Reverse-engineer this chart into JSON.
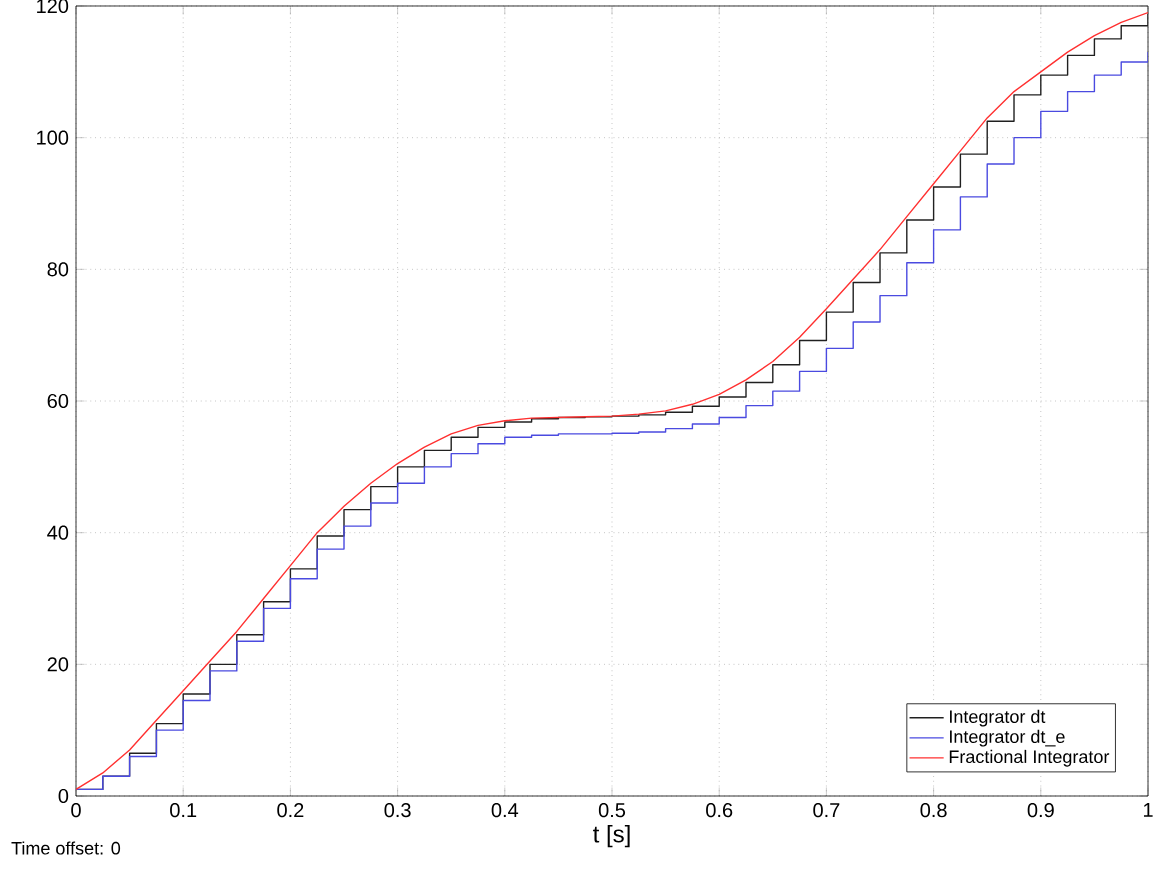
{
  "chart_data": {
    "type": "line",
    "xlabel": "t [s]",
    "annotations": [
      "Time offset: 0"
    ],
    "xlim": [
      0,
      1
    ],
    "ylim": [
      0,
      120
    ],
    "xticks": [
      0,
      0.1,
      0.2,
      0.3,
      0.4,
      0.5,
      0.6,
      0.7,
      0.8,
      0.9,
      1
    ],
    "yticks": [
      0,
      20,
      40,
      60,
      80,
      100,
      120
    ],
    "grid": true,
    "legend": "bottom right",
    "x": [
      0,
      0.025,
      0.05,
      0.075,
      0.1,
      0.125,
      0.15,
      0.175,
      0.2,
      0.225,
      0.25,
      0.275,
      0.3,
      0.325,
      0.35,
      0.375,
      0.4,
      0.425,
      0.45,
      0.475,
      0.5,
      0.525,
      0.55,
      0.575,
      0.6,
      0.625,
      0.65,
      0.675,
      0.7,
      0.725,
      0.75,
      0.775,
      0.8,
      0.825,
      0.85,
      0.875,
      0.9,
      0.925,
      0.95,
      0.975,
      1
    ],
    "series": [
      {
        "name": "Integrator dt",
        "type": "step",
        "color": "#202020",
        "values": [
          1,
          3,
          6.5,
          11,
          15.5,
          20,
          24.5,
          29.5,
          34.5,
          39.5,
          43.5,
          47,
          50,
          52.5,
          54.5,
          56,
          56.8,
          57.3,
          57.5,
          57.6,
          57.7,
          57.9,
          58.3,
          59.2,
          60.6,
          62.8,
          65.5,
          69.2,
          73.5,
          78,
          82.5,
          87.5,
          92.5,
          97.5,
          102.5,
          106.5,
          109.5,
          112.5,
          115,
          117,
          118.8
        ]
      },
      {
        "name": "Integrator dt_e",
        "type": "step",
        "color": "#4a4ae0",
        "values": [
          1,
          3,
          6,
          10,
          14.5,
          19,
          23.5,
          28.5,
          33,
          37.5,
          41,
          44.5,
          47.5,
          50,
          52,
          53.5,
          54.5,
          54.8,
          55,
          55,
          55.1,
          55.3,
          55.8,
          56.5,
          57.5,
          59.3,
          61.5,
          64.5,
          68,
          72,
          76,
          81,
          86,
          91,
          96,
          100,
          104,
          107,
          109.5,
          111.5,
          113
        ]
      },
      {
        "name": "Fractional Integrator",
        "color": "#ff3030",
        "values": [
          1,
          3.5,
          7,
          11.5,
          16,
          20.5,
          25,
          30,
          35,
          40,
          44,
          47.5,
          50.5,
          53,
          55,
          56.3,
          57,
          57.4,
          57.5,
          57.6,
          57.7,
          58,
          58.5,
          59.5,
          61,
          63.2,
          66,
          69.7,
          74,
          78.5,
          83,
          88,
          93,
          98,
          103,
          107,
          110,
          113,
          115.5,
          117.5,
          119
        ]
      }
    ]
  }
}
